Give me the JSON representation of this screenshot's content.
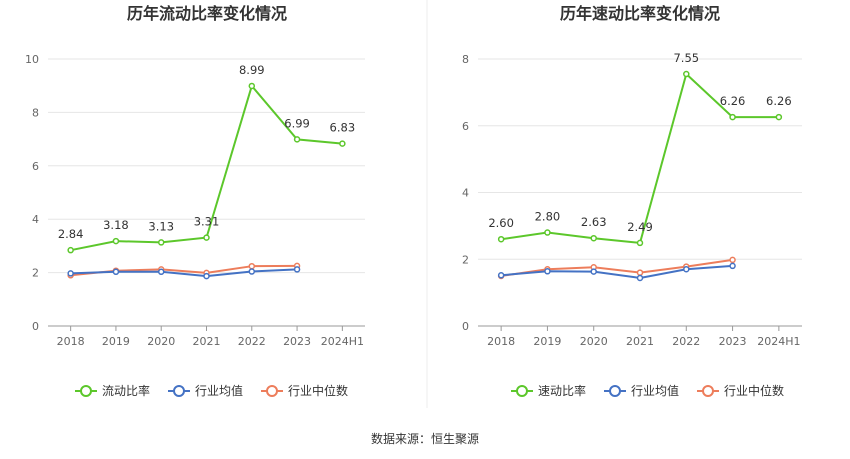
{
  "colors": {
    "green": "#5cc72b",
    "blue": "#4472c4",
    "orange": "#ed7d5b",
    "grid": "#e6e6e6",
    "axis": "#999999"
  },
  "chart_data": [
    {
      "type": "line",
      "title": "历年流动比率变化情况",
      "categories": [
        "2018",
        "2019",
        "2020",
        "2021",
        "2022",
        "2023",
        "2024H1"
      ],
      "ylim": [
        0,
        10
      ],
      "yticks": [
        0,
        2,
        4,
        6,
        8,
        10
      ],
      "grid": true,
      "legend": "bottom",
      "series": [
        {
          "name": "流动比率",
          "color": "#5cc72b",
          "labels": true,
          "values": [
            2.84,
            3.18,
            3.13,
            3.31,
            8.99,
            6.99,
            6.83
          ]
        },
        {
          "name": "行业均值",
          "color": "#4472c4",
          "labels": false,
          "values": [
            1.97,
            2.03,
            2.03,
            1.87,
            2.04,
            2.12,
            null
          ]
        },
        {
          "name": "行业中位数",
          "color": "#ed7d5b",
          "labels": false,
          "values": [
            1.9,
            2.07,
            2.12,
            1.99,
            2.24,
            2.25,
            null
          ]
        }
      ]
    },
    {
      "type": "line",
      "title": "历年速动比率变化情况",
      "categories": [
        "2018",
        "2019",
        "2020",
        "2021",
        "2022",
        "2023",
        "2024H1"
      ],
      "ylim": [
        0,
        8
      ],
      "yticks": [
        0,
        2,
        4,
        6,
        8
      ],
      "grid": true,
      "legend": "bottom",
      "series": [
        {
          "name": "速动比率",
          "color": "#5cc72b",
          "labels": true,
          "values": [
            2.6,
            2.8,
            2.63,
            2.49,
            7.55,
            6.26,
            6.26
          ]
        },
        {
          "name": "行业均值",
          "color": "#4472c4",
          "labels": false,
          "values": [
            1.52,
            1.64,
            1.63,
            1.44,
            1.7,
            1.8,
            null
          ]
        },
        {
          "name": "行业中位数",
          "color": "#ed7d5b",
          "labels": false,
          "values": [
            1.5,
            1.7,
            1.76,
            1.6,
            1.78,
            1.98,
            null
          ]
        }
      ]
    }
  ],
  "source_text": "数据来源：恒生聚源"
}
